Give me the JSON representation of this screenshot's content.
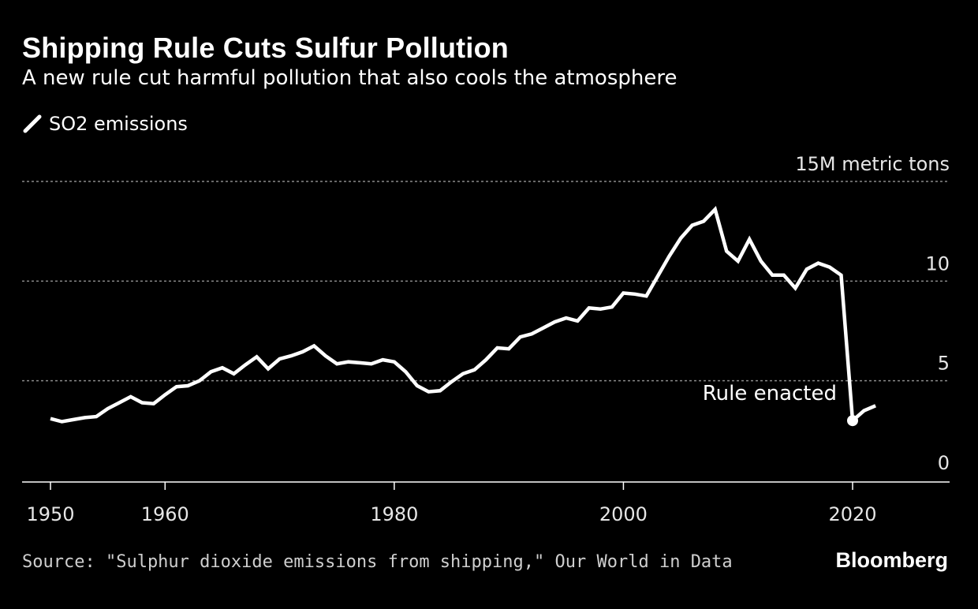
{
  "header": {
    "title": "Shipping Rule Cuts Sulfur Pollution",
    "subtitle": "A new rule cut harmful pollution that also cools the atmosphere"
  },
  "legend": {
    "series_label": "SO2 emissions",
    "icon": "line-swatch-icon"
  },
  "footer": {
    "source": "Source: \"Sulphur dioxide emissions from shipping,\" Our World in Data",
    "brand": "Bloomberg"
  },
  "colors": {
    "background": "#000000",
    "line": "#ffffff",
    "grid": "#8a8a8a",
    "axis": "#ffffff",
    "tick_text": "#e6e6e6"
  },
  "chart_data": {
    "type": "line",
    "title": "Shipping Rule Cuts Sulfur Pollution",
    "subtitle": "A new rule cut harmful pollution that also cools the atmosphere",
    "unit_label": "15M metric tons",
    "xlim": [
      1950,
      2028
    ],
    "ylim": [
      0,
      15
    ],
    "x_ticks": [
      1950,
      1960,
      1980,
      2000,
      2020
    ],
    "y_ticks": [
      {
        "value": 15,
        "label": "15M metric tons"
      },
      {
        "value": 10,
        "label": "10"
      },
      {
        "value": 5,
        "label": "5"
      },
      {
        "value": 0,
        "label": "0"
      }
    ],
    "grid": "horizontal dotted",
    "legend_position": "top-left",
    "annotations": [
      {
        "x": 2020,
        "y": 3.0,
        "text": "Rule enacted",
        "marker": "dot"
      }
    ],
    "series": [
      {
        "name": "SO2 emissions",
        "x": [
          1950,
          1951,
          1952,
          1953,
          1954,
          1955,
          1956,
          1957,
          1958,
          1959,
          1960,
          1961,
          1962,
          1963,
          1964,
          1965,
          1966,
          1967,
          1968,
          1969,
          1970,
          1971,
          1972,
          1973,
          1974,
          1975,
          1976,
          1977,
          1978,
          1979,
          1980,
          1981,
          1982,
          1983,
          1984,
          1985,
          1986,
          1987,
          1988,
          1989,
          1990,
          1991,
          1992,
          1993,
          1994,
          1995,
          1996,
          1997,
          1998,
          1999,
          2000,
          2001,
          2002,
          2003,
          2004,
          2005,
          2006,
          2007,
          2008,
          2009,
          2010,
          2011,
          2012,
          2013,
          2014,
          2015,
          2016,
          2017,
          2018,
          2019,
          2020,
          2021,
          2022
        ],
        "values": [
          3.1,
          2.95,
          3.05,
          3.15,
          3.2,
          3.6,
          3.9,
          4.2,
          3.9,
          3.85,
          4.3,
          4.7,
          4.75,
          5.0,
          5.45,
          5.65,
          5.35,
          5.8,
          6.2,
          5.6,
          6.1,
          6.25,
          6.45,
          6.75,
          6.25,
          5.85,
          5.95,
          5.9,
          5.85,
          6.05,
          5.95,
          5.45,
          4.75,
          4.45,
          4.5,
          4.95,
          5.35,
          5.55,
          6.05,
          6.65,
          6.6,
          7.2,
          7.35,
          7.65,
          7.95,
          8.15,
          8.0,
          8.65,
          8.6,
          8.7,
          9.4,
          9.35,
          9.25,
          10.25,
          11.25,
          12.15,
          12.8,
          13.0,
          13.6,
          11.5,
          11.0,
          12.1,
          11.0,
          10.3,
          10.3,
          9.65,
          10.6,
          10.9,
          10.7,
          10.3,
          3.0,
          3.5,
          3.75
        ]
      }
    ]
  }
}
